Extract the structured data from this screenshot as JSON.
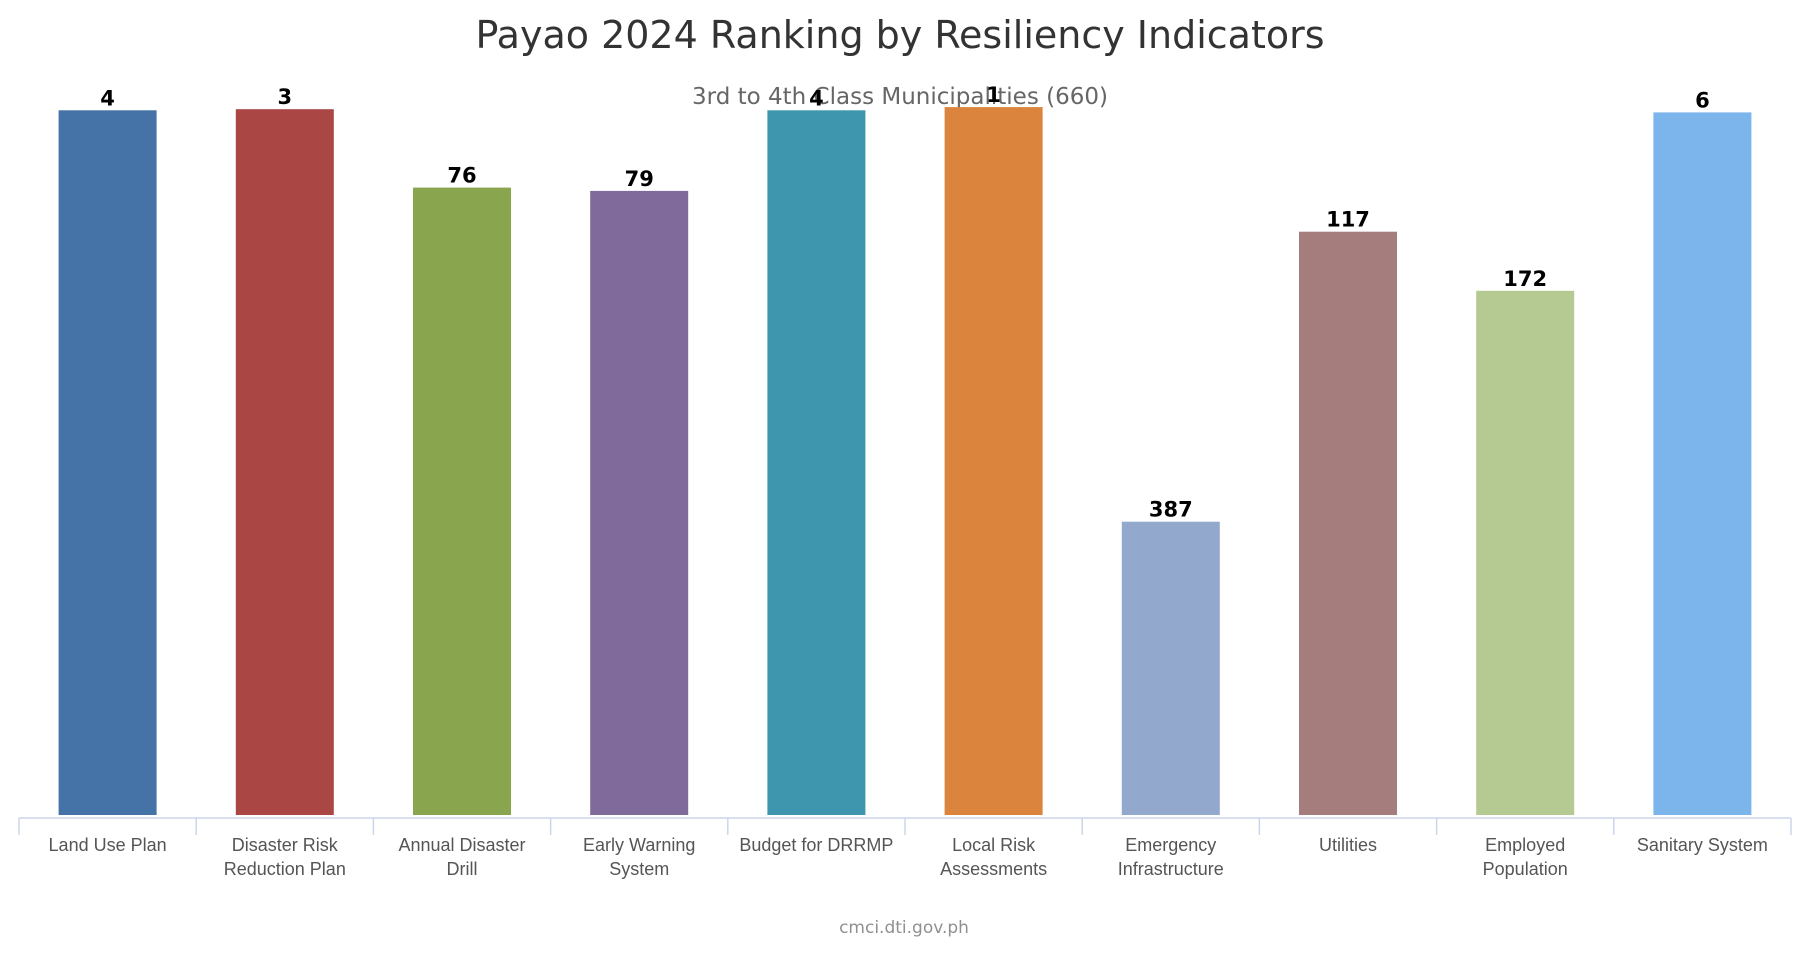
{
  "chart_data": {
    "type": "bar",
    "title": "Payao 2024 Ranking by Resiliency Indicators",
    "subtitle": "3rd to 4th Class Municipalities (660)",
    "xlabel": "",
    "ylabel": "",
    "axis_reversed": true,
    "ylim": [
      0,
      660
    ],
    "grid": false,
    "legend": "none",
    "categories": [
      "Land Use Plan",
      "Disaster Risk Reduction Plan",
      "Annual Disaster Drill",
      "Early Warning System",
      "Budget for DRRMP",
      "Local Risk Assessments",
      "Emergency Infrastructure",
      "Utilities",
      "Employed Population",
      "Sanitary System"
    ],
    "category_lines": [
      [
        "Land Use Plan"
      ],
      [
        "Disaster Risk",
        "Reduction Plan"
      ],
      [
        "Annual Disaster",
        "Drill"
      ],
      [
        "Early Warning",
        "System"
      ],
      [
        "Budget for DRRMP"
      ],
      [
        "Local Risk",
        "Assessments"
      ],
      [
        "Emergency",
        "Infrastructure"
      ],
      [
        "Utilities"
      ],
      [
        "Employed",
        "Population"
      ],
      [
        "Sanitary System"
      ]
    ],
    "values": [
      4,
      3,
      76,
      79,
      4,
      1,
      387,
      117,
      172,
      6
    ],
    "colors": [
      "#4572a7",
      "#aa4643",
      "#89a54e",
      "#80699b",
      "#3d96ae",
      "#db843d",
      "#92a8cd",
      "#a47d7c",
      "#b5ca92",
      "#7cb5ec"
    ],
    "axis_color": "#ccd6eb",
    "title_color": "#333333",
    "subtitle_color": "#666666"
  },
  "credits": "cmci.dti.gov.ph"
}
